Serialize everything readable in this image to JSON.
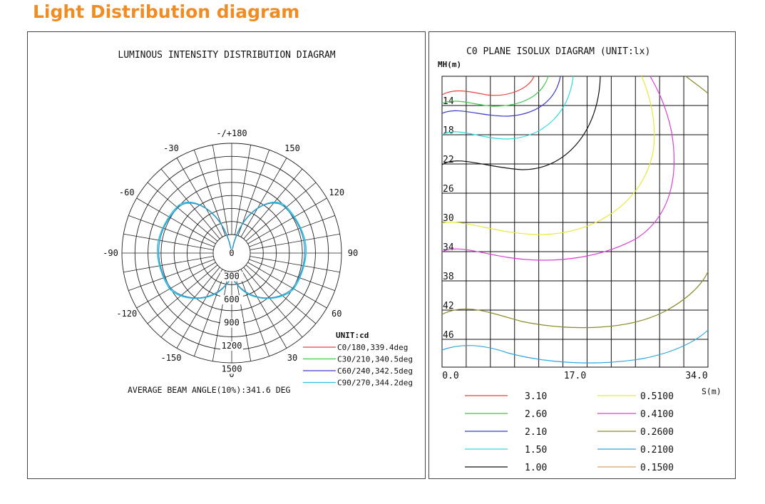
{
  "page": {
    "heading": "Light Distribution diagram"
  },
  "polar": {
    "title": "LUMINOUS INTENSITY DISTRIBUTION DIAGRAM",
    "angle_labels": [
      "-/+180",
      "150",
      "120",
      "90",
      "60",
      "30",
      "0",
      "-30",
      "-60",
      "-90",
      "-120",
      "-150"
    ],
    "radial_labels": [
      "0",
      "300",
      "600",
      "900",
      "1200",
      "1500"
    ],
    "unit": "UNIT:cd",
    "legend": [
      {
        "label": "C0/180,339.4deg",
        "color": "#e8413c"
      },
      {
        "label": "C30/210,340.5deg",
        "color": "#3cc84a"
      },
      {
        "label": "C60/240,342.5deg",
        "color": "#3a3ad0"
      },
      {
        "label": "C90/270,344.2deg",
        "color": "#2fc0e0"
      }
    ],
    "beam_angle": "AVERAGE BEAM ANGLE(10%):341.6 DEG"
  },
  "isolux": {
    "title": "C0 PLANE ISOLUX DIAGRAM (UNIT:lx)",
    "y_axis_label": "MH(m)",
    "y_ticks": [
      "14",
      "18",
      "22",
      "26",
      "30",
      "34",
      "38",
      "42",
      "46"
    ],
    "x_ticks": [
      "0.0",
      "17.0",
      "34.0"
    ],
    "x_axis_label": "S(m)",
    "legend_left": [
      {
        "label": "3.10",
        "color": "#e8413c"
      },
      {
        "label": "2.60",
        "color": "#3cc84a"
      },
      {
        "label": "2.10",
        "color": "#3a3ad0"
      },
      {
        "label": "1.50",
        "color": "#2fd9e0"
      },
      {
        "label": "1.00",
        "color": "#111111"
      }
    ],
    "legend_right": [
      {
        "label": "0.5100",
        "color": "#e8e83a"
      },
      {
        "label": "0.4100",
        "color": "#d640d6"
      },
      {
        "label": "0.2600",
        "color": "#8a8a2a"
      },
      {
        "label": "0.2100",
        "color": "#2fa6e0"
      },
      {
        "label": "0.1500",
        "color": "#e0a060"
      }
    ]
  }
}
